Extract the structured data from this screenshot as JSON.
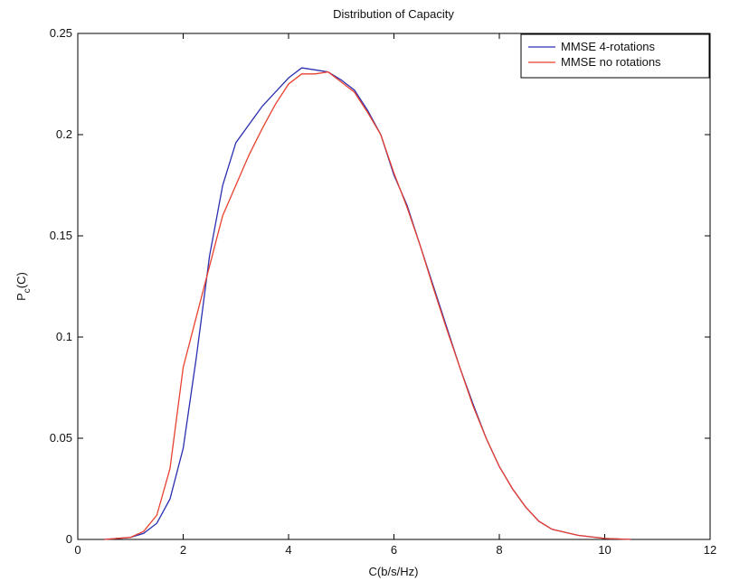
{
  "chart_data": {
    "type": "line",
    "title": "Distribution of Capacity",
    "xlabel": "C(b/s/Hz)",
    "ylabel": [
      "P",
      "c",
      "(C)"
    ],
    "x": [
      0.5,
      1.0,
      1.25,
      1.5,
      1.75,
      2.0,
      2.25,
      2.5,
      2.75,
      3.0,
      3.25,
      3.5,
      3.75,
      4.0,
      4.25,
      4.5,
      4.75,
      5.0,
      5.25,
      5.5,
      5.75,
      6.0,
      6.25,
      6.5,
      6.75,
      7.0,
      7.25,
      7.5,
      7.75,
      8.0,
      8.25,
      8.5,
      8.75,
      9.0,
      9.5,
      10.0,
      10.5
    ],
    "series": [
      {
        "name": "MMSE 4-rotations",
        "color": "#2b2fb0",
        "values": [
          0,
          0.001,
          0.003,
          0.008,
          0.02,
          0.045,
          0.09,
          0.14,
          0.175,
          0.196,
          0.205,
          0.214,
          0.221,
          0.228,
          0.233,
          0.232,
          0.231,
          0.227,
          0.222,
          0.212,
          0.2,
          0.18,
          0.165,
          0.145,
          0.125,
          0.105,
          0.085,
          0.067,
          0.05,
          0.036,
          0.025,
          0.016,
          0.009,
          0.005,
          0.002,
          0.0005,
          0
        ]
      },
      {
        "name": "MMSE no rotations",
        "color": "#e8412f",
        "values": [
          0,
          0.001,
          0.004,
          0.012,
          0.035,
          0.085,
          0.11,
          0.135,
          0.16,
          0.175,
          0.19,
          0.203,
          0.215,
          0.225,
          0.23,
          0.23,
          0.231,
          0.226,
          0.221,
          0.211,
          0.2,
          0.181,
          0.164,
          0.145,
          0.124,
          0.104,
          0.085,
          0.066,
          0.05,
          0.036,
          0.025,
          0.016,
          0.009,
          0.005,
          0.002,
          0.0005,
          0
        ]
      }
    ],
    "xlim": [
      0,
      12
    ],
    "xticks": [
      0,
      2,
      4,
      6,
      8,
      10,
      12
    ],
    "ylim": [
      0,
      0.25
    ],
    "yticks": [
      0,
      0.05,
      0.1,
      0.15,
      0.2,
      0.25
    ],
    "legend": "upper right",
    "grid": false
  }
}
